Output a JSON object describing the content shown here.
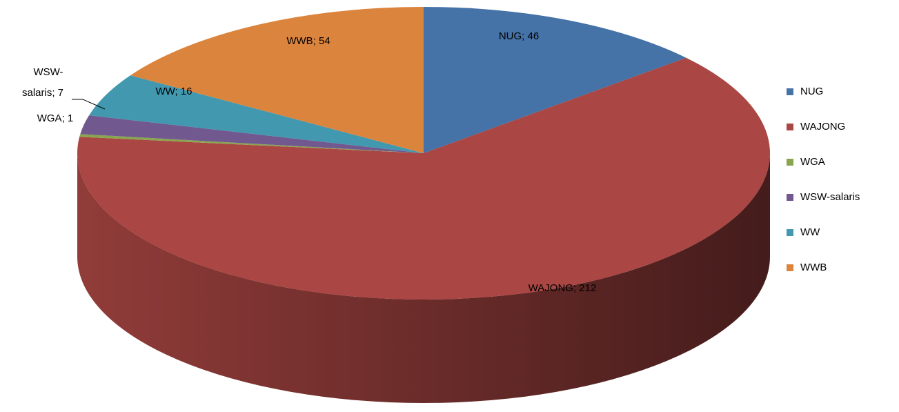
{
  "chart_data": {
    "type": "pie",
    "categories": [
      "NUG",
      "WAJONG",
      "WGA",
      "WSW-salaris",
      "WW",
      "WWB"
    ],
    "values": [
      46,
      212,
      1,
      7,
      16,
      54
    ],
    "value_labels": [
      "NUG; 46",
      "WAJONG; 212",
      "WGA; 1",
      "WSW-salaris; 7",
      "WW; 16",
      "WWB; 54"
    ],
    "colors": [
      "#4572a7",
      "#aa4643",
      "#89a54e",
      "#71588f",
      "#4198af",
      "#db843d"
    ],
    "legend": "right"
  }
}
